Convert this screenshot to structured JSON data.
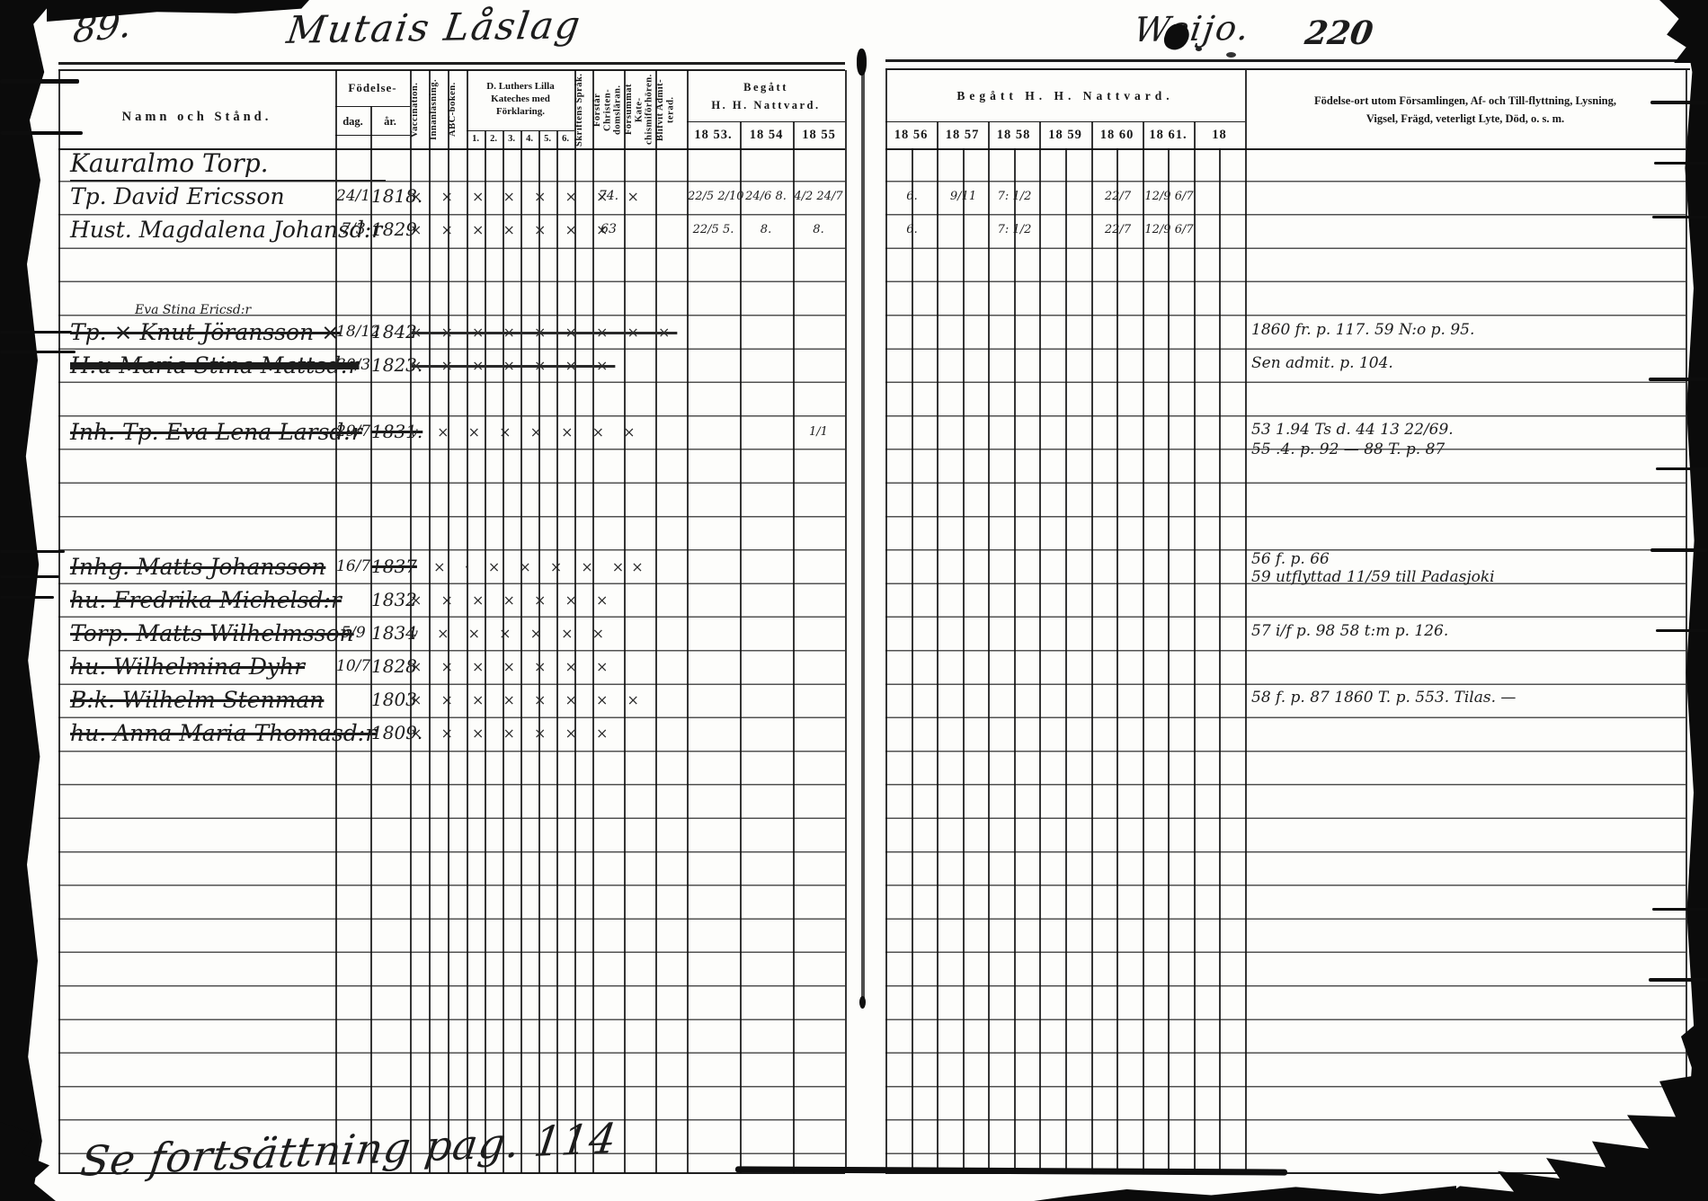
{
  "page_left": {
    "page_number": "89.",
    "title": "Mutais Låslag",
    "table": {
      "col_namn": "Namn och Stånd.",
      "col_fodelse": "Födelse-",
      "col_dag": "dag.",
      "col_ar": "år.",
      "col_vaccination": "Vaccination.",
      "col_innanlasning": "Innanläsning.",
      "col_abc": "ABC-boken.",
      "col_kateches": "D. Luthers Lilla Kateches med Förklaring.",
      "kateches_subcols": [
        "1.",
        "2.",
        "3.",
        "4.",
        "5.",
        "6."
      ],
      "col_skriftens": "Skriftens Språk.",
      "col_forstar": "Förstår Christen- domsläran.",
      "col_forsummat": "Försummat Kate- chismiförhören.",
      "col_blifvit": "Blifvit Admit- terad.",
      "col_begatt_line1": "Begått",
      "col_begatt_line2": "H. H. Nattvard.",
      "years": [
        "18 53.",
        "18 54",
        "18 55"
      ]
    }
  },
  "page_right": {
    "page_number": "220",
    "title": "Weijo.",
    "col_begatt": "Begått H. H. Nattvard.",
    "years": [
      "18 56",
      "18 57",
      "18 58",
      "18 59",
      "18 60",
      "18 61.",
      "18"
    ],
    "notes_header_line1": "Födelse-ort utom Församlingen, Af- och Till-flyttning, Lysning,",
    "notes_header_line2": "Vigsel, Frägd, veterligt Lyte, Död, o. s. m."
  },
  "entries": [
    {
      "name": "Kauralmo Torp."
    },
    {
      "name": "Tp. David Ericsson",
      "dag": "24/1",
      "ar": "1818.",
      "marks": "× × × × × × × ×",
      "c1": "74.",
      "n53": "22/5 2/10",
      "n54": "24/6 8.",
      "n55": "4/2 24/7",
      "r": [
        "6.",
        "9/11",
        "7: 1/2",
        "",
        "22/7",
        "12/9 6/7",
        ""
      ]
    },
    {
      "name": "Hust. Magdalena Johansd:r",
      "dag": "7/3",
      "ar": "1829",
      "marks": "× × × × × × ×",
      "c1": "63",
      "n53": "22/5 5.",
      "n54": "8.",
      "n55": "8.",
      "r": [
        "6.",
        "",
        "7: 1/2",
        "",
        "22/7",
        "12/9 6/7",
        ""
      ]
    },
    {
      "name": "Tp. ⨯ Knut Jöransson ⨯",
      "name2": "Eva Stina Ericsd:r",
      "dag": "18/12",
      "ar": "1842",
      "marks": "× × × × × × × × ×",
      "note1": "1860 fr. p. 117.  59 N:o p. 95."
    },
    {
      "name": "H:u Maria Stina Mattsd:r",
      "dag": "30/3",
      "ar": "1823.",
      "marks": "× × × × × × ×",
      "note1": "Sen admit. p. 104."
    },
    {
      "name": "Inh. Tp. Eva Lena Larsd:r",
      "dag": "29/7",
      "ar": "1831.",
      "marks": "v × × × × × × ×",
      "n55": "1/1",
      "note1": "53 1.94 Ts d. 44  13 22/69.",
      "note2": "55 .4. p. 92 — 88 T. p. 87"
    },
    {
      "name": "Inhg. Matts Johansson",
      "dag": "16/7",
      "ar": "1837",
      "marks": "· × · × × × × ××",
      "note1": "56 f. p. 66",
      "note2": "59 utflyttad 11/59 till Padasjoki"
    },
    {
      "name": "hu. Fredrika Michelsd:r",
      "ar": "1832",
      "marks": "× × × × × × ×"
    },
    {
      "name": "Torp. Matts Wilhelmsson",
      "dag": "5/9",
      "ar": "1834",
      "marks": "v × × × × × ×",
      "note1": "57 i/f p. 98   58 t:m p. 126."
    },
    {
      "name": "hu. Wilhelmina Dyhr",
      "dag": "10/7",
      "ar": "1828",
      "marks": "× × × × × × ×"
    },
    {
      "name": "B:k. Wilhelm Stenman",
      "ar": "1803",
      "marks": "× × × × × × × ×",
      "note1": "58 f. p. 87  1860 T. p. 553. Tilas. —"
    },
    {
      "name": "hu. Anna Maria Thomasd:r",
      "ar": "1809.",
      "marks": "× × × × × × ×"
    }
  ],
  "footer": {
    "continuation": "Se fortsättning pag. 114"
  }
}
